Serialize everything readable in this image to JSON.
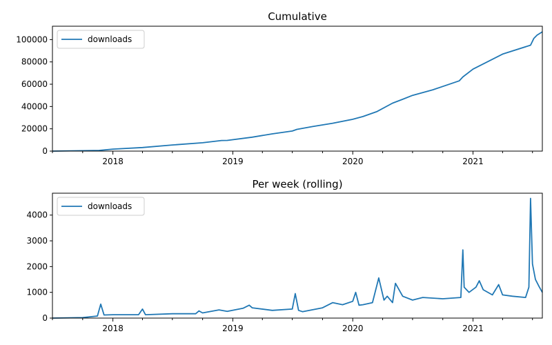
{
  "colors": {
    "series": "#1f77b4",
    "axis": "#000000",
    "legend_border": "#cccccc"
  },
  "chart_data": [
    {
      "type": "line",
      "title": "Cumulative",
      "xlabel": "",
      "ylabel": "",
      "xlim": [
        "2017-07-01",
        "2021-07-31"
      ],
      "ylim": [
        0,
        112000
      ],
      "x_ticks": [
        "2018",
        "2019",
        "2020",
        "2021"
      ],
      "y_ticks": [
        "0",
        "20000",
        "40000",
        "60000",
        "80000",
        "100000"
      ],
      "legend": {
        "position": "upper-left",
        "entries": [
          "downloads"
        ]
      },
      "grid": false,
      "series": [
        {
          "name": "downloads",
          "x": [
            "2017-07-01",
            "2017-11-20",
            "2018-01-01",
            "2018-04-01",
            "2018-07-01",
            "2018-10-01",
            "2018-11-28",
            "2018-12-15",
            "2019-03-01",
            "2019-05-01",
            "2019-07-01",
            "2019-07-15",
            "2019-09-01",
            "2019-11-01",
            "2020-01-01",
            "2020-02-01",
            "2020-03-15",
            "2020-05-01",
            "2020-06-01",
            "2020-07-01",
            "2020-09-01",
            "2020-11-20",
            "2020-12-01",
            "2021-01-01",
            "2021-04-01",
            "2021-06-25",
            "2021-07-05",
            "2021-07-15",
            "2021-07-31"
          ],
          "y": [
            0,
            600,
            1800,
            3200,
            5500,
            7500,
            9500,
            9600,
            12500,
            15500,
            18000,
            19500,
            22000,
            25000,
            28500,
            31000,
            35500,
            43000,
            46500,
            50000,
            55000,
            63000,
            66500,
            73500,
            87000,
            95000,
            101000,
            104000,
            107000
          ]
        }
      ]
    },
    {
      "type": "line",
      "title": "Per week (rolling)",
      "xlabel": "",
      "ylabel": "",
      "xlim": [
        "2017-07-01",
        "2021-07-31"
      ],
      "ylim": [
        0,
        4850
      ],
      "x_ticks": [
        "2018",
        "2019",
        "2020",
        "2021"
      ],
      "y_ticks": [
        "0",
        "1000",
        "2000",
        "3000",
        "4000"
      ],
      "legend": {
        "position": "upper-left",
        "entries": [
          "downloads"
        ]
      },
      "grid": false,
      "series": [
        {
          "name": "downloads",
          "x": [
            "2017-07-01",
            "2017-10-01",
            "2017-11-15",
            "2017-11-25",
            "2017-12-05",
            "2018-01-01",
            "2018-03-20",
            "2018-04-01",
            "2018-04-10",
            "2018-07-01",
            "2018-09-10",
            "2018-09-20",
            "2018-10-01",
            "2018-11-20",
            "2018-12-15",
            "2019-02-01",
            "2019-02-20",
            "2019-03-01",
            "2019-05-01",
            "2019-07-01",
            "2019-07-10",
            "2019-07-20",
            "2019-08-01",
            "2019-10-01",
            "2019-11-01",
            "2019-12-01",
            "2020-01-01",
            "2020-01-10",
            "2020-01-20",
            "2020-02-01",
            "2020-03-01",
            "2020-03-20",
            "2020-04-05",
            "2020-04-15",
            "2020-05-01",
            "2020-05-10",
            "2020-06-01",
            "2020-07-01",
            "2020-08-01",
            "2020-10-01",
            "2020-11-25",
            "2020-12-01",
            "2020-12-05",
            "2020-12-20",
            "2021-01-10",
            "2021-01-20",
            "2021-02-01",
            "2021-03-01",
            "2021-03-20",
            "2021-04-01",
            "2021-05-01",
            "2021-06-10",
            "2021-06-20",
            "2021-06-25",
            "2021-07-01",
            "2021-07-10",
            "2021-07-20",
            "2021-07-31"
          ],
          "y": [
            0,
            20,
            80,
            540,
            120,
            130,
            130,
            350,
            130,
            170,
            170,
            280,
            200,
            320,
            260,
            380,
            500,
            400,
            300,
            350,
            950,
            300,
            250,
            400,
            600,
            520,
            650,
            1000,
            500,
            520,
            600,
            1560,
            700,
            850,
            600,
            1350,
            850,
            700,
            800,
            750,
            800,
            2650,
            1200,
            1000,
            1200,
            1450,
            1100,
            900,
            1300,
            900,
            850,
            800,
            1200,
            4650,
            2100,
            1500,
            1250,
            1000
          ]
        }
      ]
    }
  ]
}
